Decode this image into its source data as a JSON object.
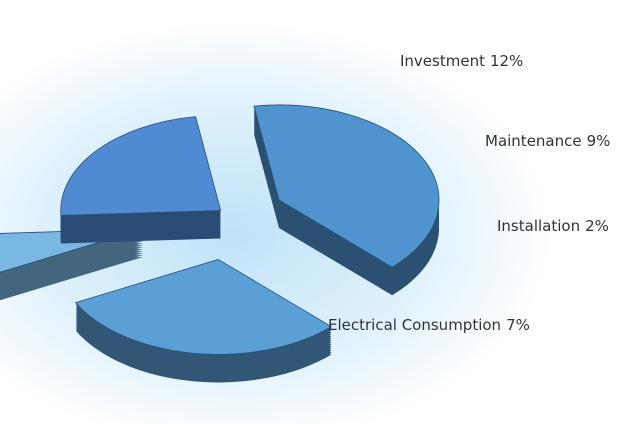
{
  "chart_data": {
    "type": "pie",
    "categories": [
      "Investment",
      "Maintenance",
      "Installation",
      "Electrical Consumption"
    ],
    "values": [
      12,
      9,
      2,
      7
    ],
    "value_labels": [
      "12%",
      "9%",
      "2%",
      "7%"
    ],
    "colors": [
      "#4f93cf",
      "#5a9fd6",
      "#7ab8e4",
      "#4f8ad2"
    ]
  }
}
